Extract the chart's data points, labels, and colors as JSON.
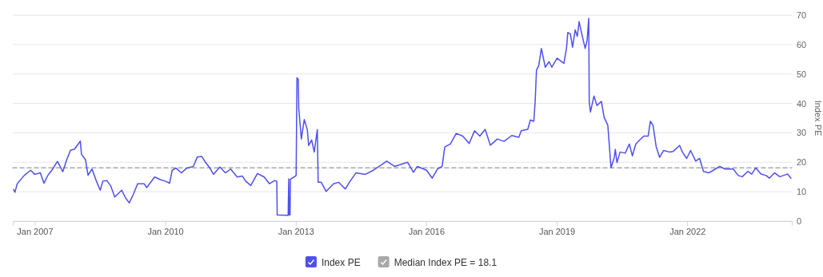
{
  "chart_data": {
    "type": "line",
    "ylabel": "Index PE",
    "xlim": [
      "2006-07-01",
      "2024-05-28"
    ],
    "ylim": [
      0,
      70
    ],
    "xticks": [
      {
        "value": "2007-01",
        "label": "Jan 2007"
      },
      {
        "value": "2010-01",
        "label": "Jan 2010"
      },
      {
        "value": "2013-01",
        "label": "Jan 2013"
      },
      {
        "value": "2016-01",
        "label": "Jan 2016"
      },
      {
        "value": "2019-01",
        "label": "Jan 2019"
      },
      {
        "value": "2022-01",
        "label": "Jan 2022"
      }
    ],
    "yticks": [
      0,
      10,
      20,
      30,
      40,
      50,
      60,
      70
    ],
    "grid": "y",
    "legend": "bottom",
    "marker": "none",
    "series": [
      {
        "name": "Index PE",
        "color": "#4f4ff0",
        "line_style": "solid",
        "x": [
          "2006-07-08",
          "2006-07-19",
          "2006-08-07",
          "2006-10-04",
          "2006-11-28",
          "2007-01-01",
          "2007-02-17",
          "2007-03-20",
          "2007-04-22",
          "2007-05-25",
          "2007-07-11",
          "2007-08-25",
          "2007-09-27",
          "2007-10-28",
          "2007-12-02",
          "2008-01-19",
          "2008-01-29",
          "2008-03-02",
          "2008-03-24",
          "2008-04-26",
          "2008-06-02",
          "2008-07-04",
          "2008-07-26",
          "2008-08-28",
          "2008-10-01",
          "2008-11-03",
          "2009-01-01",
          "2009-02-03",
          "2009-03-05",
          "2009-04-08",
          "2009-05-14",
          "2009-07-08",
          "2009-07-29",
          "2009-10-04",
          "2009-11-21",
          "2010-01-01",
          "2010-02-07",
          "2010-02-28",
          "2010-04-01",
          "2010-05-17",
          "2010-07-01",
          "2010-08-25",
          "2010-09-27",
          "2010-11-03",
          "2010-12-05",
          "2011-01-08",
          "2011-02-10",
          "2011-04-04",
          "2011-05-21",
          "2011-07-04",
          "2011-08-28",
          "2011-10-11",
          "2011-11-07",
          "2011-12-20",
          "2012-02-14",
          "2012-04-11",
          "2012-05-25",
          "2012-07-08",
          "2012-07-26",
          "2012-07-29",
          "2012-10-29",
          "2012-11-03",
          "2012-11-07",
          "2012-11-14",
          "2012-11-17",
          "2013-01-04",
          "2013-01-11",
          "2013-01-22",
          "2013-01-26",
          "2013-02-17",
          "2013-03-13",
          "2013-04-08",
          "2013-04-19",
          "2013-05-14",
          "2013-06-05",
          "2013-06-20",
          "2013-07-01",
          "2013-07-08",
          "2013-08-03",
          "2013-09-13",
          "2013-11-14",
          "2013-12-27",
          "2014-02-21",
          "2014-03-27",
          "2014-05-21",
          "2014-08-07",
          "2014-10-15",
          "2014-12-20",
          "2015-02-03",
          "2015-04-11",
          "2015-07-29",
          "2015-09-16",
          "2015-10-19",
          "2016-01-04",
          "2016-02-21",
          "2016-04-04",
          "2016-05-14",
          "2016-06-05",
          "2016-07-22",
          "2016-09-09",
          "2016-11-03",
          "2016-12-27",
          "2017-02-10",
          "2017-03-27",
          "2017-05-10",
          "2017-06-23",
          "2017-08-21",
          "2017-10-15",
          "2017-12-20",
          "2018-02-17",
          "2018-03-09",
          "2018-05-03",
          "2018-05-25",
          "2018-06-23",
          "2018-07-04",
          "2018-07-15",
          "2018-08-03",
          "2018-08-25",
          "2018-09-27",
          "2018-10-29",
          "2018-11-21",
          "2019-01-04",
          "2019-03-02",
          "2019-03-24",
          "2019-04-04",
          "2019-04-26",
          "2019-05-14",
          "2019-06-05",
          "2019-06-23",
          "2019-07-08",
          "2019-08-07",
          "2019-08-28",
          "2019-09-13",
          "2019-09-27",
          "2019-10-01",
          "2019-10-11",
          "2019-11-10",
          "2019-12-05",
          "2020-01-11",
          "2020-02-03",
          "2020-03-05",
          "2020-04-01",
          "2020-04-29",
          "2020-05-07",
          "2020-05-21",
          "2020-06-16",
          "2020-07-29",
          "2020-09-02",
          "2020-09-27",
          "2020-10-26",
          "2020-11-28",
          "2021-01-01",
          "2021-02-07",
          "2021-02-25",
          "2021-03-20",
          "2021-04-15",
          "2021-05-14",
          "2021-06-16",
          "2021-08-03",
          "2021-09-05",
          "2021-10-29",
          "2021-11-21",
          "2021-12-27",
          "2022-01-29",
          "2022-03-13",
          "2022-04-15",
          "2022-05-17",
          "2022-07-01",
          "2022-08-17",
          "2022-10-01",
          "2022-11-14",
          "2023-01-22",
          "2023-03-05",
          "2023-04-08",
          "2023-05-25",
          "2023-06-27",
          "2023-07-29",
          "2023-09-13",
          "2023-10-26",
          "2023-11-21",
          "2024-01-04",
          "2024-02-17",
          "2024-04-01",
          "2024-04-22",
          "2024-05-21"
        ],
        "values": [
          10.8,
          9.8,
          12.7,
          15.5,
          17.3,
          15.9,
          16.4,
          12.9,
          15.6,
          17.3,
          20.3,
          16.8,
          20.9,
          24.1,
          24.5,
          27.2,
          22.7,
          20.9,
          15.6,
          17.7,
          13.6,
          10.5,
          13.6,
          13.8,
          11.9,
          8.2,
          10.5,
          7.8,
          6.2,
          9.1,
          12.7,
          12.7,
          11.4,
          15.0,
          14.1,
          13.6,
          12.9,
          17.3,
          18.0,
          16.4,
          18.0,
          18.6,
          21.8,
          22.0,
          20.0,
          18.2,
          15.9,
          18.4,
          16.4,
          17.7,
          15.0,
          15.3,
          13.6,
          12.1,
          16.2,
          15.0,
          12.7,
          13.8,
          13.5,
          2.1,
          2.0,
          14.4,
          2.1,
          2.1,
          14.2,
          15.5,
          48.7,
          48.3,
          38.4,
          27.9,
          34.5,
          31.1,
          25.7,
          27.6,
          23.5,
          27.9,
          31.1,
          13.2,
          13.2,
          10.1,
          12.7,
          13.2,
          10.9,
          13.2,
          16.4,
          15.9,
          17.3,
          19.1,
          20.4,
          18.6,
          20.0,
          16.6,
          18.6,
          17.3,
          14.6,
          17.7,
          18.6,
          25.2,
          26.2,
          29.8,
          28.9,
          26.4,
          30.7,
          28.9,
          31.2,
          25.8,
          27.9,
          27.1,
          29.1,
          28.5,
          30.7,
          31.2,
          34.4,
          33.9,
          40.7,
          51.3,
          52.8,
          58.7,
          52.3,
          54.2,
          52.3,
          55.4,
          53.6,
          58.7,
          64.1,
          63.6,
          59.1,
          65.0,
          62.8,
          67.8,
          62.3,
          58.7,
          61.4,
          68.9,
          40.7,
          37.1,
          42.5,
          39.3,
          40.7,
          35.3,
          32.6,
          18.1,
          21.7,
          24.4,
          19.9,
          23.5,
          23.1,
          26.2,
          22.2,
          26.2,
          27.6,
          28.9,
          28.9,
          33.9,
          32.6,
          25.3,
          21.7,
          24.0,
          23.5,
          23.7,
          25.7,
          23.5,
          21.3,
          24.0,
          20.4,
          21.3,
          16.9,
          16.4,
          17.5,
          18.6,
          17.7,
          17.7,
          15.5,
          15.1,
          16.9,
          16.0,
          18.1,
          16.0,
          15.5,
          14.6,
          16.4,
          15.1,
          15.7,
          16.0,
          14.6
        ]
      },
      {
        "name": "Median Index PE = 18.1",
        "color": "#a8a8a8",
        "line_style": "dashed",
        "x": [
          "2006-07-01",
          "2024-05-28"
        ],
        "values": [
          18.1,
          18.1
        ]
      }
    ]
  }
}
